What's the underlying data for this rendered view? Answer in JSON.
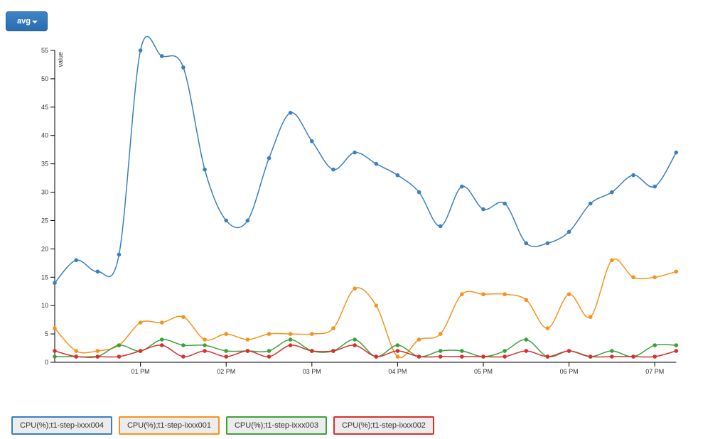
{
  "toolbar": {
    "aggregation_label": "avg"
  },
  "colors": {
    "s1": "#3a7fc0",
    "s2": "#f7921e",
    "s3": "#3da13a",
    "s4": "#d8302f"
  },
  "chart_data": {
    "type": "line",
    "ylabel": "value",
    "ylim": [
      0,
      55
    ],
    "yticks": [
      0,
      5,
      10,
      15,
      20,
      25,
      30,
      35,
      40,
      45,
      50,
      55
    ],
    "x_start": "12:00",
    "x_step_minutes": 15,
    "xticks": [
      {
        "label": "01 PM",
        "index": 4
      },
      {
        "label": "02 PM",
        "index": 8
      },
      {
        "label": "03 PM",
        "index": 12
      },
      {
        "label": "04 PM",
        "index": 16
      },
      {
        "label": "05 PM",
        "index": 20
      },
      {
        "label": "06 PM",
        "index": 24
      },
      {
        "label": "07 PM",
        "index": 28
      }
    ],
    "series": [
      {
        "name": "CPU(%);t1-step-ixxx004",
        "color": "#3a7fc0",
        "values": [
          14,
          18,
          16,
          19,
          55,
          54,
          52,
          34,
          25,
          25,
          36,
          44,
          39,
          34,
          37,
          35,
          33,
          30,
          24,
          31,
          27,
          28,
          21,
          21,
          23,
          28,
          30,
          33,
          31,
          37
        ]
      },
      {
        "name": "CPU(%);t1-step-ixxx001",
        "color": "#f7921e",
        "values": [
          6,
          2,
          2,
          3,
          7,
          7,
          8,
          4,
          5,
          4,
          5,
          5,
          5,
          6,
          13,
          10,
          1,
          4,
          5,
          12,
          12,
          12,
          11,
          6,
          12,
          8,
          18,
          15,
          15,
          16
        ]
      },
      {
        "name": "CPU(%);t1-step-ixxx003",
        "color": "#3da13a",
        "values": [
          1,
          1,
          1,
          3,
          2,
          4,
          3,
          3,
          2,
          2,
          2,
          4,
          2,
          2,
          4,
          1,
          3,
          1,
          2,
          2,
          1,
          2,
          4,
          1,
          2,
          1,
          2,
          1,
          3,
          3
        ]
      },
      {
        "name": "CPU(%);t1-step-ixxx002",
        "color": "#d8302f",
        "values": [
          2,
          1,
          1,
          1,
          2,
          3,
          1,
          2,
          1,
          2,
          1,
          3,
          2,
          2,
          3,
          1,
          2,
          1,
          1,
          1,
          1,
          1,
          2,
          1,
          2,
          1,
          1,
          1,
          1,
          2
        ]
      }
    ]
  }
}
